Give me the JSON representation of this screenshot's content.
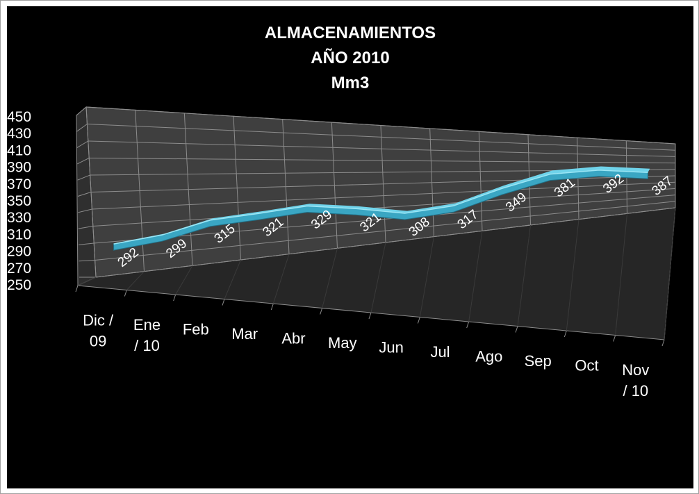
{
  "chart_data": {
    "type": "line",
    "style": "3d",
    "title_lines": [
      "ALMACENAMIENTOS",
      "AÑO 2010",
      "Mm3"
    ],
    "categories": [
      "Dic / 09",
      "Ene / 10",
      "Feb",
      "Mar",
      "Abr",
      "May",
      "Jun",
      "Jul",
      "Ago",
      "Sep",
      "Oct",
      "Nov / 10"
    ],
    "category_lines": [
      [
        "Dic /",
        "09"
      ],
      [
        "Ene",
        "/ 10"
      ],
      [
        "Feb"
      ],
      [
        "Mar"
      ],
      [
        "Abr"
      ],
      [
        "May"
      ],
      [
        "Jun"
      ],
      [
        "Jul"
      ],
      [
        "Ago"
      ],
      [
        "Sep"
      ],
      [
        "Oct"
      ],
      [
        "Nov",
        "/ 10"
      ]
    ],
    "values": [
      292,
      299,
      315,
      321,
      329,
      321,
      308,
      317,
      349,
      381,
      392,
      387
    ],
    "ylim": [
      250,
      450
    ],
    "yticks": [
      "450",
      "430",
      "410",
      "390",
      "370",
      "350",
      "330",
      "310",
      "290",
      "270",
      "250"
    ],
    "xlabel": "",
    "ylabel": "",
    "grid": true,
    "legend": "none",
    "colors": {
      "background": "#000000",
      "wall": "#3f3f3f",
      "floor": "#262626",
      "grid": "#8c8c8c",
      "line_top": "#6fd3ea",
      "line_body": "#3aa6c3",
      "line_edge": "#1f6f86",
      "text": "#ffffff"
    }
  }
}
